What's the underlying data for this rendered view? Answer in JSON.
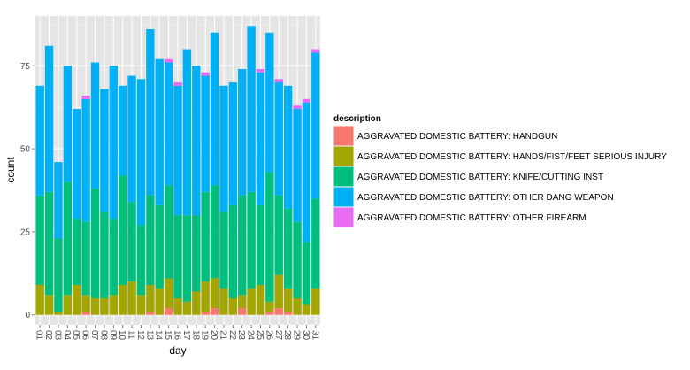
{
  "chart_data": {
    "type": "bar",
    "stacked": true,
    "xlabel": "day",
    "ylabel": "count",
    "ylim": [
      -3,
      90
    ],
    "yticks": [
      0,
      25,
      50,
      75
    ],
    "grid": true,
    "legend": {
      "title": "description",
      "placement": "right"
    },
    "categories": [
      "01",
      "02",
      "03",
      "04",
      "05",
      "06",
      "07",
      "08",
      "09",
      "10",
      "11",
      "12",
      "13",
      "14",
      "15",
      "16",
      "17",
      "18",
      "19",
      "20",
      "21",
      "22",
      "23",
      "24",
      "25",
      "26",
      "27",
      "28",
      "29",
      "30",
      "31"
    ],
    "series": [
      {
        "name": "AGGRAVATED DOMESTIC BATTERY: HANDGUN",
        "color": "#F8766D",
        "values": [
          0,
          0,
          0,
          0,
          0,
          1,
          0,
          0,
          0,
          0,
          0,
          0,
          1,
          0,
          2,
          0,
          0,
          0,
          1,
          2,
          0,
          0,
          2,
          0,
          0,
          1,
          2,
          1,
          0,
          0,
          0
        ]
      },
      {
        "name": "AGGRAVATED DOMESTIC BATTERY: HANDS/FIST/FEET SERIOUS INJURY",
        "color": "#A3A500",
        "values": [
          9,
          6,
          1,
          6,
          9,
          5,
          5,
          5,
          6,
          9,
          10,
          6,
          8,
          8,
          9,
          5,
          4,
          7,
          9,
          9,
          8,
          5,
          4,
          8,
          9,
          3,
          10,
          7,
          5,
          3,
          8
        ]
      },
      {
        "name": "AGGRAVATED DOMESTIC BATTERY: KNIFE/CUTTING INST",
        "color": "#00BF7D",
        "values": [
          27,
          31,
          22,
          34,
          20,
          22,
          33,
          26,
          23,
          33,
          24,
          21,
          27,
          25,
          28,
          25,
          26,
          23,
          27,
          28,
          23,
          28,
          30,
          29,
          24,
          39,
          24,
          24,
          23,
          19,
          27
        ]
      },
      {
        "name": "AGGRAVATED DOMESTIC BATTERY: OTHER DANG WEAPON",
        "color": "#00B0F6",
        "values": [
          33,
          44,
          23,
          35,
          33,
          37,
          38,
          37,
          46,
          27,
          38,
          44,
          50,
          44,
          37,
          39,
          50,
          45,
          35,
          46,
          38,
          37,
          38,
          50,
          40,
          42,
          34,
          37,
          34,
          42,
          44
        ]
      },
      {
        "name": "AGGRAVATED DOMESTIC BATTERY: OTHER FIREARM",
        "color": "#E76BF3",
        "values": [
          0,
          0,
          0,
          0,
          0,
          1,
          0,
          0,
          0,
          0,
          0,
          0,
          0,
          0,
          1,
          1,
          0,
          0,
          1,
          0,
          0,
          0,
          0,
          0,
          1,
          0,
          1,
          0,
          1,
          1,
          1
        ]
      }
    ]
  }
}
